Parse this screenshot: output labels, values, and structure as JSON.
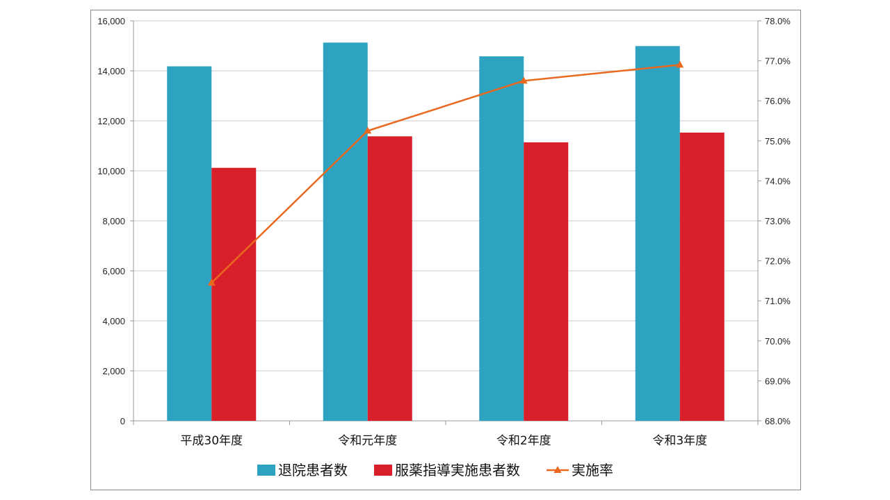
{
  "chart_data": {
    "type": "bar",
    "categories": [
      "平成30年度",
      "令和元年度",
      "令和2年度",
      "令和3年度"
    ],
    "series": [
      {
        "name": "退院患者数",
        "type": "bar",
        "axis": "left",
        "color": "#2ea3c1",
        "values": [
          14180,
          15130,
          14580,
          14990
        ]
      },
      {
        "name": "服薬指導実施患者数",
        "type": "bar",
        "axis": "left",
        "color": "#d91f2a",
        "values": [
          10120,
          11380,
          11140,
          11530
        ]
      },
      {
        "name": "実施率",
        "type": "line",
        "axis": "right",
        "color": "#e8691f",
        "marker": "triangle",
        "values": [
          71.45,
          75.25,
          76.5,
          76.9
        ]
      }
    ],
    "y_left": {
      "min": 0,
      "max": 16000,
      "step": 2000,
      "tick_labels": [
        "0",
        "2,000",
        "4,000",
        "6,000",
        "8,000",
        "10,000",
        "12,000",
        "14,000",
        "16,000"
      ]
    },
    "y_right": {
      "min": 68.0,
      "max": 78.0,
      "step": 1.0,
      "tick_labels": [
        "68.0%",
        "69.0%",
        "70.0%",
        "71.0%",
        "72.0%",
        "73.0%",
        "74.0%",
        "75.0%",
        "76.0%",
        "77.0%",
        "78.0%"
      ]
    },
    "grid": true,
    "legend_position": "bottom",
    "title": "",
    "xlabel": "",
    "ylabel": ""
  }
}
